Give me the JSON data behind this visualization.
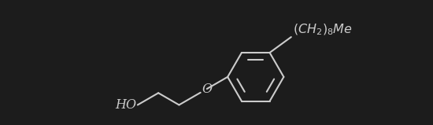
{
  "background_color": "#1c1c1c",
  "line_color": "#cccccc",
  "text_color": "#cccccc",
  "figsize": [
    5.5,
    1.59
  ],
  "dpi": 100,
  "lw": 1.5,
  "font_size_main": 11.5,
  "bx": 6.2,
  "by": 1.05,
  "br": 0.68,
  "xmin": 0.0,
  "xmax": 10.5,
  "ymin": 0.0,
  "ymax": 2.8
}
